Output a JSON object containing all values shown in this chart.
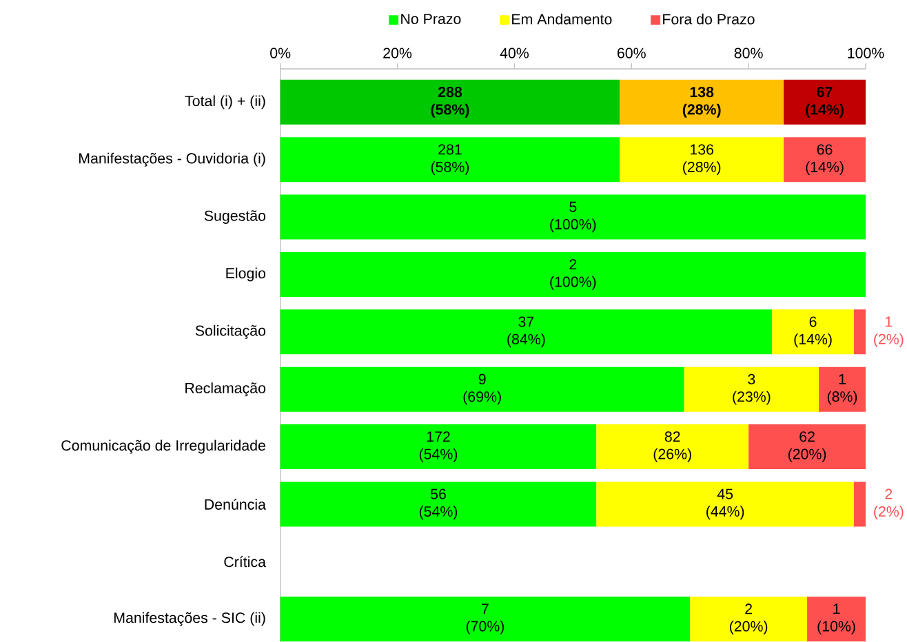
{
  "chart_data": {
    "type": "bar",
    "orientation": "horizontal",
    "stacked": true,
    "legend": "top",
    "categories": [
      "Total (i) + (ii)",
      "Manifestações - Ouvidoria (i)",
      "Sugestão",
      "Elogio",
      "Solicitação",
      "Reclamação",
      "Comunicação de Irregularidade",
      "Denúncia",
      "Crítica",
      "Manifestações - SIC (ii)"
    ],
    "xlim": [
      0,
      100
    ],
    "xticks": [
      {
        "value": 0,
        "label": "0%"
      },
      {
        "value": 20,
        "label": "20%"
      },
      {
        "value": 40,
        "label": "40%"
      },
      {
        "value": 60,
        "label": "60%"
      },
      {
        "value": 80,
        "label": "80%"
      },
      {
        "value": 100,
        "label": "100%"
      }
    ],
    "series": [
      {
        "name": "No Prazo",
        "color": "#00ff00",
        "colors": [
          "#00c800",
          "#00ff00",
          "#00ff00",
          "#00ff00",
          "#00ff00",
          "#00ff00",
          "#00ff00",
          "#00ff00",
          "#00ff00",
          "#00ff00"
        ],
        "values": [
          58,
          58,
          100,
          100,
          84,
          69,
          54,
          54,
          null,
          70
        ],
        "value_labels": [
          "288 (58%)",
          "281 (58%)",
          "5 (100%)",
          "2 (100%)",
          "37 (84%)",
          "9 (69%)",
          "172 (54%)",
          "56 (54%)",
          null,
          "7 (70%)"
        ]
      },
      {
        "name": "Em Andamento",
        "color": "#ffff00",
        "colors": [
          "#ffc000",
          "#ffff00",
          "#ffff00",
          "#ffff00",
          "#ffff00",
          "#ffff00",
          "#ffff00",
          "#ffff00",
          "#ffff00",
          "#ffff00"
        ],
        "values": [
          28,
          28,
          null,
          null,
          14,
          23,
          26,
          44,
          null,
          20
        ],
        "value_labels": [
          "138 (28%)",
          "136 (28%)",
          null,
          null,
          "6 (14%)",
          "3 (23%)",
          "82 (26%)",
          "45 (44%)",
          null,
          "2 (20%)"
        ]
      },
      {
        "name": "Fora do Prazo",
        "color": "#ff5050",
        "colors": [
          "#c00000",
          "#ff5050",
          "#ff5050",
          "#ff5050",
          "#ff5050",
          "#ff5050",
          "#ff5050",
          "#ff5050",
          "#ff5050",
          "#ff5050"
        ],
        "values": [
          14,
          14,
          null,
          null,
          2,
          8,
          20,
          2,
          null,
          10
        ],
        "value_labels": [
          "67 (14%)",
          "66 (14%)",
          null,
          null,
          "1 (2%)",
          "1 (8%)",
          "62 (20%)",
          "2 (2%)",
          null,
          "1 (10%)"
        ]
      }
    ]
  }
}
